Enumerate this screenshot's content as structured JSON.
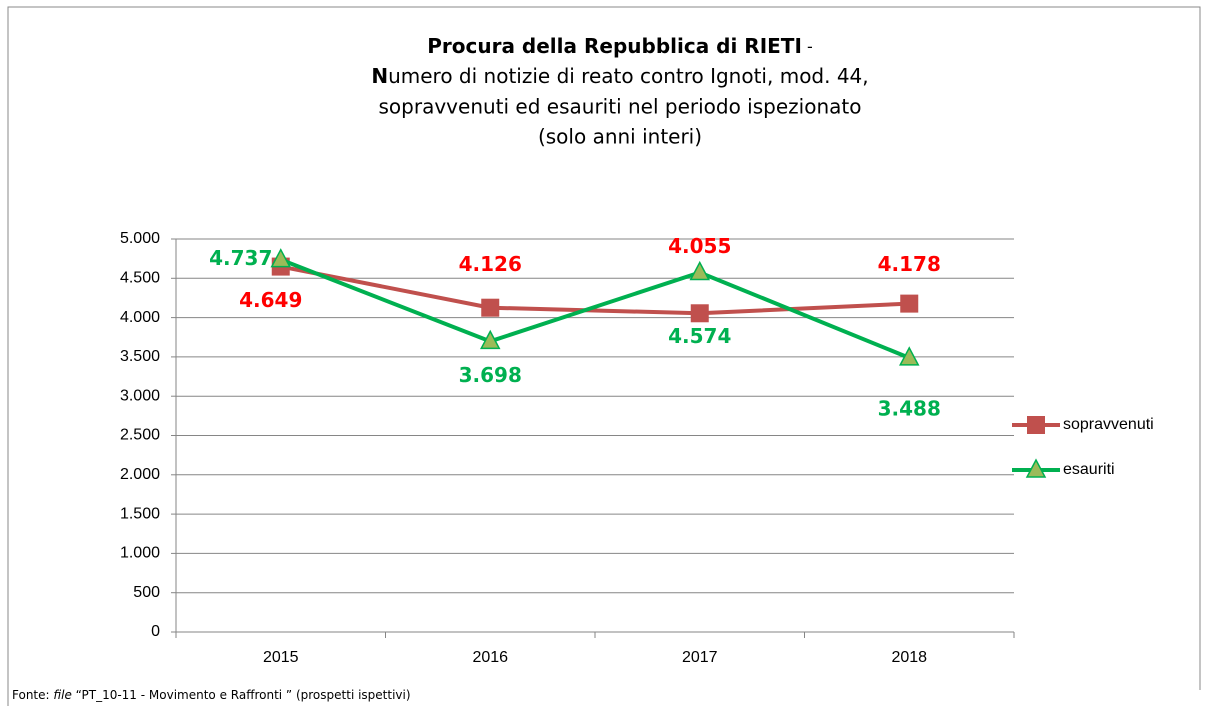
{
  "chart_data": {
    "type": "line",
    "title": [
      "Procura della Repubblica di RIETI",
      " -",
      "N",
      "umero di notizie di reato contro Ignoti, mod. 44,",
      "sopravvenuti ed esauriti nel periodo ispezionato",
      "(solo anni interi)"
    ],
    "categories": [
      "2015",
      "2016",
      "2017",
      "2018"
    ],
    "series": [
      {
        "name": "sopravvenuti",
        "color": "#c0504d",
        "label_color": "#ff0000",
        "marker": "square",
        "values": [
          4649,
          4126,
          4055,
          4178
        ],
        "value_labels": [
          "4.649",
          "4.126",
          "4.055",
          "4.178"
        ]
      },
      {
        "name": "esauriti",
        "color": "#00b050",
        "label_color": "#00b050",
        "marker": "triangle",
        "marker_fill": "#9bbb59",
        "values": [
          4737,
          3698,
          4574,
          3488
        ],
        "value_labels": [
          "4.737",
          "3.698",
          "4.574",
          "3.488"
        ]
      }
    ],
    "ylim": [
      0,
      5000
    ],
    "yticks": [
      0,
      500,
      {
        "value": 1000,
        "label": "1.000"
      },
      {
        "value": 1500,
        "label": "1.500"
      },
      {
        "value": 2000,
        "label": "2.000"
      },
      {
        "value": 2500,
        "label": "2.500"
      },
      {
        "value": 3000,
        "label": "3.000"
      },
      {
        "value": 3500,
        "label": "3.500"
      },
      {
        "value": 4000,
        "label": "4.000"
      },
      {
        "value": 4500,
        "label": "4.500"
      },
      {
        "value": 5000,
        "label": "5.000"
      }
    ],
    "grid": true,
    "legend": "right",
    "source": [
      "Fonte: ",
      "file",
      " “PT_10-11 - Movimento e Raffronti ” (prospetti ispettivi)"
    ]
  }
}
